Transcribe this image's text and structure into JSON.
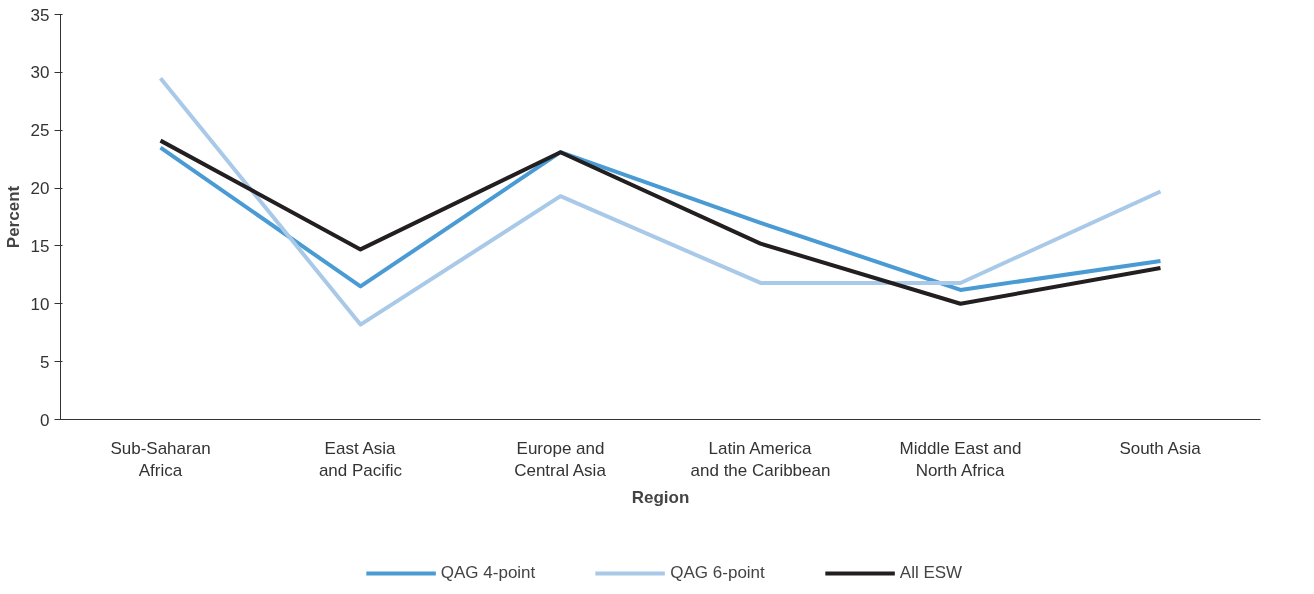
{
  "chart_data": {
    "type": "line",
    "xlabel": "Region",
    "ylabel": "Percent",
    "categories": [
      "Sub-Saharan\nAfrica",
      "East Asia\nand Pacific",
      "Europe and\nCentral Asia",
      "Latin America\nand the Caribbean",
      "Middle East and\nNorth Africa",
      "South Asia"
    ],
    "series": [
      {
        "name": "QAG 4-point",
        "color": "#4a9bd4",
        "values": [
          23.5,
          11.5,
          23.1,
          17.0,
          11.2,
          13.7
        ]
      },
      {
        "name": "QAG 6-point",
        "color": "#a9c9e8",
        "values": [
          29.5,
          8.2,
          19.3,
          11.8,
          11.8,
          19.7
        ]
      },
      {
        "name": "All ESW",
        "color": "#231f20",
        "values": [
          24.1,
          14.7,
          23.1,
          15.2,
          10.0,
          13.1
        ]
      }
    ],
    "ylim": [
      0,
      35
    ],
    "yticks": [
      0,
      5,
      10,
      15,
      20,
      25,
      30,
      35
    ],
    "grid": false,
    "legend": "bottom",
    "marker": "none",
    "line_style": "solid"
  }
}
